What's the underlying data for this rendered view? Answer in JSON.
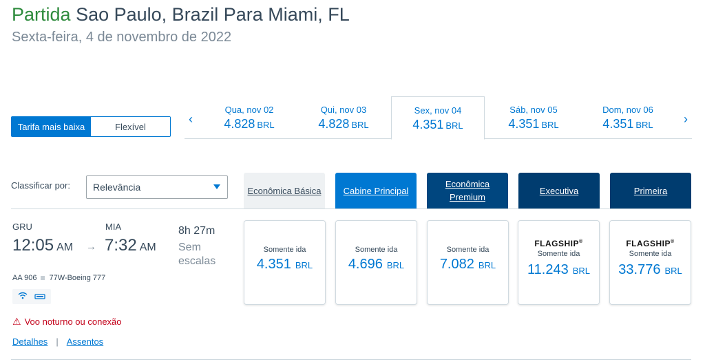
{
  "header": {
    "depart_word": "Partida",
    "route": "Sao Paulo, Brazil Para Miami, FL",
    "date": "Sexta-feira, 4 de novembro de 2022"
  },
  "fare_toggle": {
    "lowest_label": "Tarifa mais baixa",
    "flexible_label": "Flexível"
  },
  "date_strip": {
    "prev_icon": "chevron-left-icon",
    "next_icon": "chevron-right-icon",
    "days": [
      {
        "date": "Qua, nov 02",
        "price": "4.828",
        "currency": "BRL"
      },
      {
        "date": "Qui, nov 03",
        "price": "4.828",
        "currency": "BRL"
      },
      {
        "date": "Sex, nov 04",
        "price": "4.351",
        "currency": "BRL",
        "active": true
      },
      {
        "date": "Sáb, nov 05",
        "price": "4.351",
        "currency": "BRL"
      },
      {
        "date": "Dom, nov 06",
        "price": "4.351",
        "currency": "BRL"
      }
    ]
  },
  "sort": {
    "label": "Classificar por:",
    "value": "Relevância"
  },
  "cabins": [
    {
      "line1": "Econômica Básica",
      "line2": ""
    },
    {
      "line1": "Cabine Principal",
      "line2": ""
    },
    {
      "line1": "Econômica",
      "line2": "Premium"
    },
    {
      "line1": "Executiva",
      "line2": ""
    },
    {
      "line1": "Primeira",
      "line2": ""
    }
  ],
  "flight": {
    "origin": "GRU",
    "destination": "MIA",
    "depart_time": "12:05",
    "depart_ampm": "AM",
    "arrive_time": "7:32",
    "arrive_ampm": "AM",
    "arrow": "→",
    "duration": "8h  27m",
    "stops": "Sem escalas",
    "flight_number": "AA 906",
    "aircraft": "77W-Boeing 777",
    "amenities": [
      "wifi-icon",
      "seat-power-icon"
    ],
    "warning": "Voo noturno ou conexão",
    "details_link": "Detalhes",
    "link_separator": "|",
    "seats_link": "Assentos"
  },
  "fares": [
    {
      "brand": "",
      "label": "Somente ida",
      "price": "4.351",
      "currency": "BRL"
    },
    {
      "brand": "",
      "label": "Somente ida",
      "price": "4.696",
      "currency": "BRL"
    },
    {
      "brand": "",
      "label": "Somente ida",
      "price": "7.082",
      "currency": "BRL"
    },
    {
      "brand": "FLAGSHIP",
      "label": "Somente ida",
      "price": "11.243",
      "currency": "BRL"
    },
    {
      "brand": "FLAGSHIP",
      "label": "Somente ida",
      "price": "33.776",
      "currency": "BRL"
    }
  ],
  "colors": {
    "accent": "#0078d2",
    "navy": "#00467f",
    "depart_green": "#2e8b3d",
    "warning_red": "#c30019"
  }
}
